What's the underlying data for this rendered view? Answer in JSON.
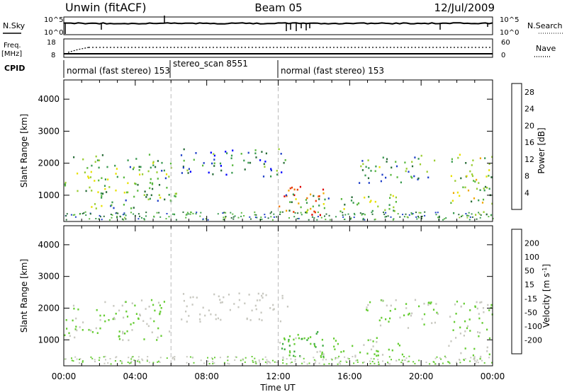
{
  "header": {
    "station": "Unwin",
    "mode": "(fitACF)",
    "beam": "Beam 05",
    "date": "12/Jul/2009"
  },
  "summary_panels": {
    "nsky_label": "N.Sky",
    "nsearch_label": "N.Search",
    "count_ticks": [
      "10^5",
      "10^0"
    ],
    "freq_label_1": "Freq.",
    "freq_label_2": "[MHz]",
    "freq_ticks": [
      "18",
      "8"
    ],
    "nave_label": "Nave",
    "nave_ticks": [
      "60",
      "0"
    ],
    "cpid_label": "CPID",
    "cpid_segments": [
      {
        "label": "normal (fast stereo) 153",
        "start": 0,
        "end": 6.0
      },
      {
        "label": "stereo_scan 8551",
        "start": 6.0,
        "end": 12.0
      },
      {
        "label": "normal (fast stereo) 153",
        "start": 12.0,
        "end": 24.0
      }
    ]
  },
  "chart_data": [
    {
      "type": "heatmap",
      "title": "",
      "xlabel": "Time UT",
      "ylabel": "Slant Range [km]",
      "xlim": [
        0,
        24
      ],
      "ylim": [
        180,
        4600
      ],
      "x_ticks": [
        "00:00",
        "04:00",
        "08:00",
        "12:00",
        "16:00",
        "20:00",
        "00:00"
      ],
      "y_ticks": [
        "1000",
        "2000",
        "3000",
        "4000"
      ],
      "colorbar": {
        "label": "Power [dB]",
        "ticks": [
          "4",
          "8",
          "12",
          "16",
          "20",
          "24",
          "28"
        ],
        "range": [
          0,
          30
        ],
        "colors": [
          "#0000ff",
          "#2040c8",
          "#2a6e3a",
          "#3a9a50",
          "#5ab840",
          "#9acd32",
          "#e8e000",
          "#f0a800",
          "#f07000",
          "#e83800",
          "#dd0000"
        ]
      },
      "scatter_regions": [
        {
          "t_start": 0.0,
          "t_end": 6.0,
          "range_start": 1000,
          "range_end": 2300,
          "level": 12
        },
        {
          "t_start": 1.5,
          "t_end": 6.3,
          "range_start": 600,
          "range_end": 1200,
          "level": 10
        },
        {
          "t_start": 6.5,
          "t_end": 12.5,
          "range_start": 1600,
          "range_end": 2500,
          "level": 8
        },
        {
          "t_start": 12.0,
          "t_end": 14.5,
          "range_start": 400,
          "range_end": 1300,
          "level": 24
        },
        {
          "t_start": 12.0,
          "t_end": 19.0,
          "range_start": 500,
          "range_end": 1100,
          "level": 12
        },
        {
          "t_start": 16.5,
          "t_end": 21.0,
          "range_start": 1400,
          "range_end": 2300,
          "level": 10
        },
        {
          "t_start": 21.5,
          "t_end": 24.0,
          "range_start": 400,
          "range_end": 2300,
          "level": 14
        }
      ]
    },
    {
      "type": "heatmap",
      "title": "",
      "xlabel": "Time UT",
      "ylabel": "Slant Range [km]",
      "xlim": [
        0,
        24
      ],
      "ylim": [
        180,
        4600
      ],
      "x_ticks": [
        "00:00",
        "04:00",
        "08:00",
        "12:00",
        "16:00",
        "20:00",
        "00:00"
      ],
      "y_ticks": [
        "1000",
        "2000",
        "3000",
        "4000"
      ],
      "colorbar": {
        "label": "Velocity [m s^-1]",
        "ticks": [
          "200",
          "100",
          "50",
          "15",
          "-15",
          "-50",
          "-100",
          "-200"
        ],
        "range": [
          -250,
          250
        ],
        "colors": [
          "#2030a0",
          "#2a64a0",
          "#2a8050",
          "#3aaa40",
          "#66cc33",
          "#c8c8c0",
          "#f0b020",
          "#f08c00",
          "#f05000",
          "#e81010"
        ]
      },
      "scatter_regions": [
        {
          "t_start": 0.0,
          "t_end": 6.0,
          "range_start": 1000,
          "range_end": 2300,
          "level": 0
        },
        {
          "t_start": 6.5,
          "t_end": 12.5,
          "range_start": 1600,
          "range_end": 2500,
          "level": 30
        },
        {
          "t_start": 12.0,
          "t_end": 19.0,
          "range_start": 500,
          "range_end": 1100,
          "level": -10
        },
        {
          "t_start": 12.0,
          "t_end": 14.5,
          "range_start": 400,
          "range_end": 1300,
          "level": -60
        },
        {
          "t_start": 16.5,
          "t_end": 21.0,
          "range_start": 1400,
          "range_end": 2300,
          "level": 0
        },
        {
          "t_start": 21.5,
          "t_end": 24.0,
          "range_start": 400,
          "range_end": 2300,
          "level": 0
        }
      ]
    }
  ]
}
